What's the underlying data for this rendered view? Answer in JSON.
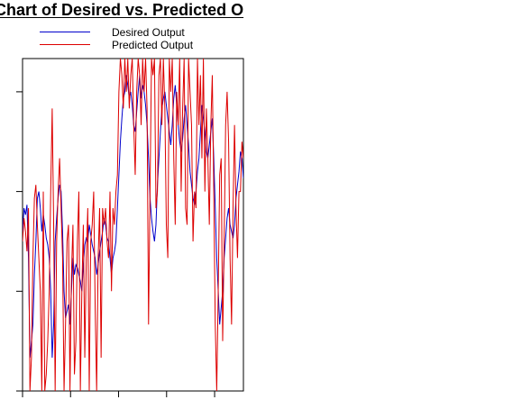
{
  "chart_data": {
    "type": "line",
    "title": "Chart of Desired vs. Predicted O",
    "xlabel": "",
    "ylabel": "",
    "xlim": [
      0,
      230
    ],
    "ylim": [
      0,
      100
    ],
    "grid": false,
    "legend_position": "top-left",
    "series": [
      {
        "name": "Desired Output",
        "color": "#0000cc",
        "values": [
          48,
          55,
          53,
          56,
          40,
          10,
          15,
          20,
          35,
          45,
          58,
          60,
          55,
          48,
          53,
          50,
          46,
          44,
          40,
          30,
          10,
          20,
          45,
          52,
          58,
          62,
          60,
          48,
          30,
          22,
          24,
          26,
          20,
          30,
          40,
          35,
          38,
          37,
          35,
          33,
          30,
          38,
          44,
          46,
          45,
          50,
          47,
          44,
          42,
          40,
          35,
          38,
          42,
          45,
          48,
          52,
          50,
          46,
          45,
          40,
          35,
          40,
          42,
          45,
          55,
          65,
          75,
          82,
          88,
          90,
          95,
          92,
          88,
          90,
          86,
          80,
          78,
          84,
          90,
          95,
          88,
          92,
          90,
          86,
          80,
          70,
          58,
          52,
          48,
          45,
          50,
          62,
          70,
          78,
          85,
          88,
          90,
          86,
          82,
          78,
          74,
          80,
          88,
          92,
          86,
          80,
          75,
          72,
          76,
          82,
          86,
          80,
          74,
          66,
          62,
          58,
          56,
          60,
          66,
          70,
          78,
          86,
          82,
          78,
          72,
          70,
          74,
          78,
          82,
          70,
          55,
          40,
          30,
          20,
          25,
          30,
          40,
          46,
          52,
          55,
          50,
          48,
          46,
          50,
          58,
          62,
          66,
          72,
          70,
          64
        ]
      },
      {
        "name": "Predicted Output",
        "color": "#dd0000",
        "values": [
          45,
          52,
          48,
          42,
          55,
          0,
          10,
          40,
          58,
          62,
          50,
          40,
          30,
          0,
          60,
          0,
          5,
          15,
          30,
          60,
          85,
          50,
          0,
          45,
          60,
          70,
          55,
          40,
          0,
          20,
          45,
          50,
          0,
          35,
          50,
          5,
          15,
          45,
          60,
          0,
          30,
          50,
          10,
          40,
          55,
          0,
          45,
          50,
          60,
          25,
          0,
          40,
          55,
          10,
          55,
          50,
          55,
          45,
          40,
          60,
          30,
          55,
          50,
          60,
          65,
          90,
          100,
          95,
          85,
          100,
          90,
          100,
          85,
          95,
          100,
          80,
          65,
          90,
          100,
          95,
          80,
          100,
          90,
          100,
          85,
          20,
          60,
          100,
          95,
          100,
          55,
          60,
          95,
          100,
          80,
          100,
          85,
          50,
          40,
          100,
          90,
          100,
          70,
          50,
          90,
          80,
          100,
          60,
          85,
          100,
          55,
          50,
          100,
          90,
          80,
          45,
          60,
          55,
          100,
          80,
          95,
          70,
          100,
          60,
          85,
          70,
          50,
          80,
          95,
          60,
          20,
          0,
          30,
          65,
          70,
          15,
          45,
          80,
          90,
          75,
          40,
          20,
          55,
          80,
          55,
          40,
          60,
          60,
          75,
          70
        ]
      }
    ]
  }
}
